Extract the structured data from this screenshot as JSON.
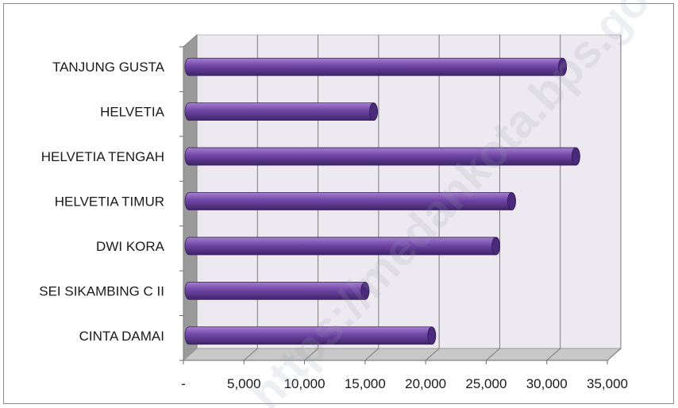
{
  "chart_data": {
    "type": "bar",
    "orientation": "horizontal",
    "title": "",
    "xlabel": "",
    "ylabel": "",
    "categories": [
      "TANJUNG GUSTA",
      "HELVETIA",
      "HELVETIA TENGAH",
      "HELVETIA TIMUR",
      "DWI KORA",
      "SEI SIKAMBING C II",
      "CINTA DAMAI"
    ],
    "values": [
      31300,
      15700,
      32400,
      27100,
      25800,
      15000,
      20500
    ],
    "xlim": [
      0,
      35000
    ],
    "ticks": [
      0,
      5000,
      10000,
      15000,
      20000,
      25000,
      30000,
      35000
    ],
    "tick_labels": [
      "-",
      "5,000",
      "10,000",
      "15,000",
      "20,000",
      "25,000",
      "30,000",
      "35,000"
    ],
    "grid": true,
    "legend": "none",
    "style": "3d-cylinder",
    "colors": {
      "bar_light": "#a67fcf",
      "bar_main": "#6f46a6",
      "bar_dark": "#3f2468",
      "bar_cap": "#4a2a7a",
      "back_wall": "#ece9f0",
      "side_wall": "#9a9a9a",
      "floor": "#c8c8c8",
      "grid": "#7a7a7a"
    }
  },
  "watermark": "https://medankota.bps.go.id"
}
